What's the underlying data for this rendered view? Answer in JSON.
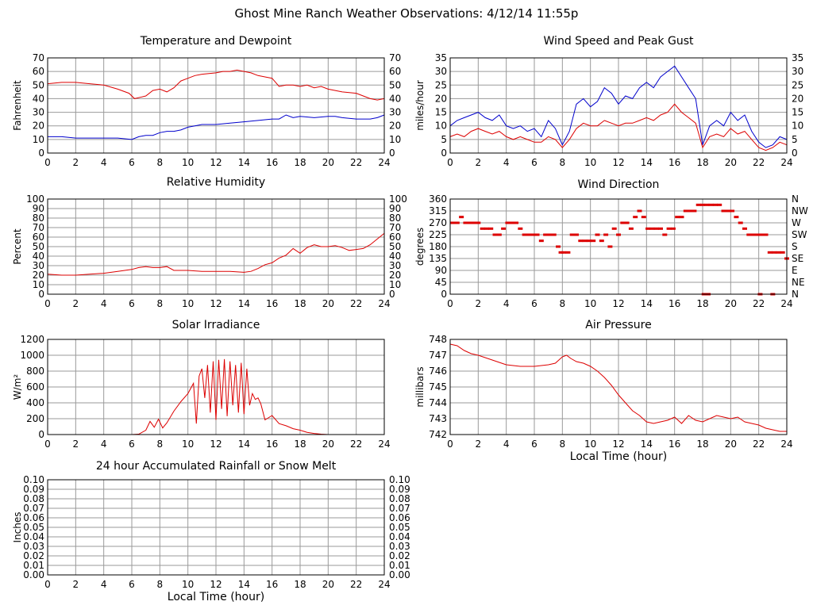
{
  "page": {
    "title": "Ghost Mine Ranch Weather Observations: 4/12/14 11:55p"
  },
  "colors": {
    "red": "#dd0000",
    "blue": "#0000cc",
    "grid": "#9a9a9a",
    "frame": "#000000"
  },
  "chart_data": [
    {
      "id": "temp",
      "type": "line",
      "title": "Temperature and Dewpoint",
      "ylabel": "Fahrenheit",
      "xlabel": "",
      "xlim": [
        0,
        24
      ],
      "ylim": [
        0,
        70
      ],
      "grid": true,
      "xticks": [
        "0",
        "2",
        "4",
        "6",
        "8",
        "10",
        "12",
        "14",
        "16",
        "18",
        "20",
        "22",
        "24"
      ],
      "yticks": [
        "0",
        "10",
        "20",
        "30",
        "40",
        "50",
        "60",
        "70"
      ],
      "yticks_right": [
        "0",
        "10",
        "20",
        "30",
        "40",
        "50",
        "60",
        "70"
      ],
      "series": [
        {
          "color": "red",
          "x": [
            0,
            1,
            2,
            3,
            4,
            5,
            5.8,
            6.2,
            6.6,
            7,
            7.5,
            8,
            8.5,
            9,
            9.5,
            10,
            10.5,
            11,
            12,
            12.5,
            13,
            13.5,
            14,
            14.5,
            15,
            15.5,
            16,
            16.5,
            17,
            17.5,
            18,
            18.5,
            19,
            19.5,
            20,
            21,
            22,
            22.5,
            23,
            23.5,
            24
          ],
          "y": [
            51,
            52,
            52,
            51,
            50,
            47,
            44,
            40,
            41,
            42,
            46,
            47,
            45,
            48,
            53,
            55,
            57,
            58,
            59,
            60,
            60,
            61,
            60,
            59,
            57,
            56,
            55,
            49,
            50,
            50,
            49,
            50,
            48,
            49,
            47,
            45,
            44,
            42,
            40,
            39,
            40
          ]
        },
        {
          "color": "blue",
          "x": [
            0,
            1,
            2,
            3,
            4,
            5,
            6,
            6.5,
            7,
            7.5,
            8,
            8.5,
            9,
            9.5,
            10,
            10.5,
            11,
            12,
            13,
            14,
            15,
            16,
            16.5,
            17,
            17.5,
            18,
            19,
            20,
            20.5,
            21,
            22,
            23,
            23.5,
            24
          ],
          "y": [
            12,
            12,
            11,
            11,
            11,
            11,
            10,
            12,
            13,
            13,
            15,
            16,
            16,
            17,
            19,
            20,
            21,
            21,
            22,
            23,
            24,
            25,
            25,
            28,
            26,
            27,
            26,
            27,
            27,
            26,
            25,
            25,
            26,
            28
          ]
        }
      ]
    },
    {
      "id": "wind",
      "type": "line",
      "title": "Wind Speed and Peak Gust",
      "ylabel": "miles/hour",
      "xlabel": "",
      "xlim": [
        0,
        24
      ],
      "ylim": [
        0,
        35
      ],
      "grid": true,
      "xticks": [
        "0",
        "2",
        "4",
        "6",
        "8",
        "10",
        "12",
        "14",
        "16",
        "18",
        "20",
        "22",
        "24"
      ],
      "yticks": [
        "0",
        "5",
        "10",
        "15",
        "20",
        "25",
        "30",
        "35"
      ],
      "yticks_right": [
        "0",
        "5",
        "10",
        "15",
        "20",
        "25",
        "30",
        "35"
      ],
      "series": [
        {
          "color": "blue",
          "x": [
            0,
            0.5,
            1,
            1.5,
            2,
            2.5,
            3,
            3.5,
            4,
            4.5,
            5,
            5.5,
            6,
            6.5,
            7,
            7.5,
            8,
            8.5,
            9,
            9.5,
            10,
            10.5,
            11,
            11.5,
            12,
            12.5,
            13,
            13.5,
            14,
            14.5,
            15,
            15.5,
            16,
            16.5,
            17,
            17.5,
            18,
            18.5,
            19,
            19.5,
            20,
            20.5,
            21,
            21.5,
            22,
            22.5,
            23,
            23.5,
            24
          ],
          "y": [
            10,
            12,
            13,
            14,
            15,
            13,
            12,
            14,
            10,
            9,
            10,
            8,
            9,
            6,
            12,
            9,
            3,
            8,
            18,
            20,
            17,
            19,
            24,
            22,
            18,
            21,
            20,
            24,
            26,
            24,
            28,
            30,
            32,
            28,
            24,
            20,
            3,
            10,
            12,
            10,
            15,
            12,
            14,
            8,
            4,
            2,
            3,
            6,
            5
          ]
        },
        {
          "color": "red",
          "x": [
            0,
            0.5,
            1,
            1.5,
            2,
            2.5,
            3,
            3.5,
            4,
            4.5,
            5,
            5.5,
            6,
            6.5,
            7,
            7.5,
            8,
            8.5,
            9,
            9.5,
            10,
            10.5,
            11,
            11.5,
            12,
            12.5,
            13,
            13.5,
            14,
            14.5,
            15,
            15.5,
            16,
            16.5,
            17,
            17.5,
            18,
            18.5,
            19,
            19.5,
            20,
            20.5,
            21,
            21.5,
            22,
            22.5,
            23,
            23.5,
            24
          ],
          "y": [
            6,
            7,
            6,
            8,
            9,
            8,
            7,
            8,
            6,
            5,
            6,
            5,
            4,
            4,
            6,
            5,
            2,
            5,
            9,
            11,
            10,
            10,
            12,
            11,
            10,
            11,
            11,
            12,
            13,
            12,
            14,
            15,
            18,
            15,
            13,
            11,
            2,
            6,
            7,
            6,
            9,
            7,
            8,
            5,
            2,
            1,
            2,
            4,
            3
          ]
        }
      ]
    },
    {
      "id": "rh",
      "type": "line",
      "title": "Relative Humidity",
      "ylabel": "Percent",
      "xlabel": "",
      "xlim": [
        0,
        24
      ],
      "ylim": [
        0,
        100
      ],
      "grid": true,
      "xticks": [
        "0",
        "2",
        "4",
        "6",
        "8",
        "10",
        "12",
        "14",
        "16",
        "18",
        "20",
        "22",
        "24"
      ],
      "yticks": [
        "0",
        "10",
        "20",
        "30",
        "40",
        "50",
        "60",
        "70",
        "80",
        "90",
        "100"
      ],
      "yticks_right": [
        "0",
        "10",
        "20",
        "30",
        "40",
        "50",
        "60",
        "70",
        "80",
        "90",
        "100"
      ],
      "series": [
        {
          "color": "red",
          "x": [
            0,
            1,
            2,
            3,
            4,
            5,
            6,
            6.5,
            7,
            7.5,
            8,
            8.5,
            9,
            10,
            11,
            12,
            13,
            14,
            14.5,
            15,
            15.5,
            16,
            16.5,
            17,
            17.5,
            18,
            18.5,
            19,
            19.5,
            20,
            20.5,
            21,
            21.5,
            22,
            22.5,
            23,
            23.5,
            24
          ],
          "y": [
            21,
            20,
            20,
            21,
            22,
            24,
            26,
            28,
            29,
            28,
            28,
            29,
            25,
            25,
            24,
            24,
            24,
            23,
            24,
            27,
            31,
            33,
            38,
            41,
            48,
            43,
            49,
            52,
            50,
            50,
            51,
            49,
            46,
            47,
            48,
            52,
            58,
            64
          ]
        }
      ]
    },
    {
      "id": "wdir",
      "type": "scatter",
      "title": "Wind Direction",
      "ylabel": "degrees",
      "xlabel": "",
      "xlim": [
        0,
        24
      ],
      "ylim": [
        0,
        360
      ],
      "grid": true,
      "xticks": [
        "0",
        "2",
        "4",
        "6",
        "8",
        "10",
        "12",
        "14",
        "16",
        "18",
        "20",
        "22",
        "24"
      ],
      "yticks": [
        "0",
        "45",
        "90",
        "135",
        "180",
        "225",
        "270",
        "315",
        "360"
      ],
      "yticks_right": [
        "N",
        "NE",
        "E",
        "SE",
        "S",
        "SW",
        "W",
        "NW",
        "N"
      ],
      "series": [
        {
          "color": "red",
          "x": [
            0.2,
            0.5,
            0.8,
            1.1,
            1.4,
            1.7,
            2.0,
            2.3,
            2.6,
            2.9,
            3.2,
            3.5,
            3.8,
            4.1,
            4.4,
            4.7,
            5.0,
            5.3,
            5.6,
            5.9,
            6.2,
            6.5,
            6.8,
            7.1,
            7.4,
            7.7,
            7.9,
            8.1,
            8.4,
            8.7,
            9.0,
            9.3,
            9.6,
            9.9,
            10.2,
            10.5,
            10.8,
            11.1,
            11.4,
            11.7,
            12.0,
            12.3,
            12.6,
            12.9,
            13.2,
            13.5,
            13.8,
            14.1,
            14.4,
            14.7,
            15.0,
            15.3,
            15.6,
            15.9,
            16.2,
            16.5,
            16.8,
            17.1,
            17.4,
            17.7,
            18.0,
            18.3,
            18.6,
            18.9,
            19.2,
            19.5,
            19.8,
            20.1,
            20.4,
            20.7,
            21.0,
            21.3,
            21.6,
            21.9,
            22.2,
            22.5,
            22.8,
            23.1,
            23.4,
            23.7,
            24.0,
            18.1,
            18.4,
            22.1,
            23.0
          ],
          "y": [
            270,
            270,
            292,
            270,
            270,
            270,
            270,
            248,
            248,
            248,
            225,
            225,
            248,
            270,
            270,
            270,
            248,
            225,
            225,
            225,
            225,
            202,
            225,
            225,
            225,
            180,
            158,
            158,
            158,
            225,
            225,
            202,
            202,
            202,
            202,
            225,
            202,
            225,
            180,
            248,
            225,
            270,
            270,
            248,
            292,
            315,
            292,
            248,
            248,
            248,
            248,
            225,
            248,
            248,
            292,
            292,
            315,
            315,
            315,
            338,
            338,
            338,
            338,
            338,
            338,
            315,
            315,
            315,
            292,
            270,
            248,
            225,
            225,
            225,
            225,
            225,
            158,
            158,
            158,
            158,
            135,
            0,
            0,
            0,
            0
          ]
        }
      ]
    },
    {
      "id": "solar",
      "type": "line",
      "title": "Solar Irradiance",
      "ylabel": "W/m²",
      "xlabel": "",
      "xlim": [
        0,
        24
      ],
      "ylim": [
        0,
        1300
      ],
      "grid": true,
      "xticks": [
        "0",
        "2",
        "4",
        "6",
        "8",
        "10",
        "12",
        "14",
        "16",
        "18",
        "20",
        "22",
        "24"
      ],
      "yticks": [
        "0",
        "200",
        "400",
        "600",
        "800",
        "1000",
        "1200"
      ],
      "yticks_right": [],
      "series": [
        {
          "color": "red",
          "x": [
            0,
            6,
            6.5,
            7,
            7.3,
            7.6,
            7.9,
            8.2,
            8.5,
            9,
            9.5,
            10,
            10.4,
            10.6,
            10.8,
            11,
            11.2,
            11.4,
            11.6,
            11.8,
            12,
            12.2,
            12.4,
            12.6,
            12.8,
            13,
            13.2,
            13.4,
            13.6,
            13.8,
            14,
            14.2,
            14.4,
            14.6,
            14.8,
            15,
            15.2,
            15.5,
            16,
            16.5,
            17,
            17.5,
            18,
            18.5,
            19,
            19.5,
            20,
            24
          ],
          "y": [
            0,
            0,
            5,
            60,
            180,
            100,
            210,
            90,
            160,
            320,
            450,
            560,
            700,
            150,
            800,
            900,
            500,
            950,
            300,
            1000,
            200,
            1020,
            350,
            1030,
            250,
            1000,
            400,
            950,
            300,
            980,
            280,
            900,
            400,
            560,
            480,
            500,
            420,
            200,
            260,
            150,
            120,
            80,
            60,
            30,
            15,
            5,
            0,
            0
          ]
        }
      ]
    },
    {
      "id": "pressure",
      "type": "line",
      "title": "Air Pressure",
      "ylabel": "millibars",
      "xlabel": "Local Time (hour)",
      "xlim": [
        0,
        24
      ],
      "ylim": [
        742,
        748
      ],
      "grid": true,
      "xticks": [
        "0",
        "2",
        "4",
        "6",
        "8",
        "10",
        "12",
        "14",
        "16",
        "18",
        "20",
        "22",
        "24"
      ],
      "yticks": [
        "742",
        "743",
        "744",
        "745",
        "746",
        "747",
        "748"
      ],
      "yticks_right": [],
      "series": [
        {
          "color": "red",
          "x": [
            0,
            0.5,
            1,
            1.5,
            2,
            3,
            4,
            5,
            6,
            7,
            7.5,
            8,
            8.3,
            8.6,
            9,
            9.5,
            10,
            10.5,
            11,
            11.5,
            12,
            12.5,
            13,
            13.5,
            14,
            14.5,
            15,
            15.5,
            16,
            16.5,
            17,
            17.5,
            18,
            18.5,
            19,
            19.5,
            20,
            20.5,
            21,
            21.5,
            22,
            22.5,
            23,
            23.5,
            24
          ],
          "y": [
            747.7,
            747.6,
            747.3,
            747.1,
            747.0,
            746.7,
            746.4,
            746.3,
            746.3,
            746.4,
            746.5,
            746.9,
            747.0,
            746.8,
            746.6,
            746.5,
            746.3,
            746.0,
            745.6,
            745.1,
            744.5,
            744.0,
            743.5,
            743.2,
            742.8,
            742.7,
            742.8,
            742.9,
            743.1,
            742.7,
            743.2,
            742.9,
            742.8,
            743.0,
            743.2,
            743.1,
            743.0,
            743.1,
            742.8,
            742.7,
            742.6,
            742.4,
            742.3,
            742.2,
            742.2
          ]
        }
      ]
    },
    {
      "id": "rain",
      "type": "line",
      "title": "24 hour Accumulated Rainfall or Snow Melt",
      "ylabel": "Inches",
      "xlabel": "Local Time (hour)",
      "xlim": [
        0,
        24
      ],
      "ylim": [
        0,
        0.1
      ],
      "grid": true,
      "xticks": [
        "0",
        "2",
        "4",
        "6",
        "8",
        "10",
        "12",
        "14",
        "16",
        "18",
        "20",
        "22",
        "24"
      ],
      "yticks": [
        "0.00",
        "0.01",
        "0.02",
        "0.03",
        "0.04",
        "0.05",
        "0.06",
        "0.07",
        "0.08",
        "0.09",
        "0.10"
      ],
      "yticks_right": [
        "0.00",
        "0.01",
        "0.02",
        "0.03",
        "0.04",
        "0.05",
        "0.06",
        "0.07",
        "0.08",
        "0.09",
        "0.10"
      ],
      "series": [
        {
          "color": "red",
          "x": [
            0,
            24
          ],
          "y": [
            0,
            0
          ]
        }
      ]
    }
  ]
}
